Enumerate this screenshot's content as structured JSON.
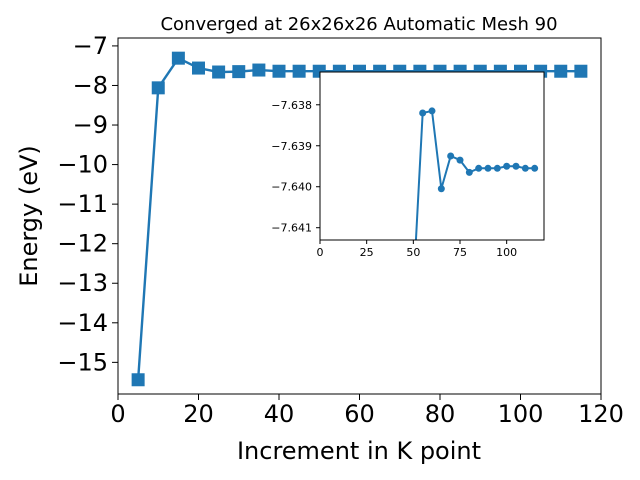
{
  "chart_data": [
    {
      "type": "line",
      "role": "main",
      "title": "Converged at 26x26x26 Automatic Mesh 90",
      "xlabel": "Increment in K point",
      "ylabel": "Energy (eV)",
      "xlim": [
        0,
        120
      ],
      "ylim": [
        -15.8,
        -6.8
      ],
      "xticks": [
        0,
        20,
        40,
        60,
        80,
        100,
        120
      ],
      "yticks": [
        -15,
        -14,
        -13,
        -12,
        -11,
        -10,
        -9,
        -8,
        -7
      ],
      "ytick_labels": [
        "−15",
        "−14",
        "−13",
        "−12",
        "−11",
        "−10",
        "−9",
        "−8",
        "−7"
      ],
      "marker": "square",
      "color": "#1f77b4",
      "series": [
        {
          "x": [
            5,
            10,
            15,
            20,
            25,
            30,
            35,
            40,
            45,
            50,
            55,
            60,
            65,
            70,
            75,
            80,
            85,
            90,
            95,
            100,
            105,
            110,
            115
          ],
          "values": [
            -15.44,
            -8.06,
            -7.31,
            -7.56,
            -7.66,
            -7.65,
            -7.61,
            -7.64,
            -7.64,
            -7.64,
            -7.64,
            -7.64,
            -7.64,
            -7.64,
            -7.64,
            -7.64,
            -7.64,
            -7.64,
            -7.64,
            -7.64,
            -7.64,
            -7.64,
            -7.64
          ]
        }
      ]
    },
    {
      "type": "line",
      "role": "inset",
      "xlim": [
        0,
        120
      ],
      "ylim": [
        -7.6413,
        -7.6372
      ],
      "xticks": [
        0,
        25,
        50,
        75,
        100
      ],
      "yticks": [
        -7.641,
        -7.64,
        -7.639,
        -7.638
      ],
      "ytick_labels": [
        "−7.641",
        "−7.640",
        "−7.639",
        "−7.638"
      ],
      "marker": "circle",
      "color": "#1f77b4",
      "series": [
        {
          "x": [
            50,
            55,
            60,
            65,
            70,
            75,
            80,
            85,
            90,
            95,
            100,
            105,
            110,
            115
          ],
          "values": [
            -7.6425,
            -7.6382,
            -7.63815,
            -7.64005,
            -7.63925,
            -7.63935,
            -7.63965,
            -7.63955,
            -7.63955,
            -7.63955,
            -7.6395,
            -7.6395,
            -7.63955,
            -7.63955
          ]
        }
      ]
    }
  ]
}
